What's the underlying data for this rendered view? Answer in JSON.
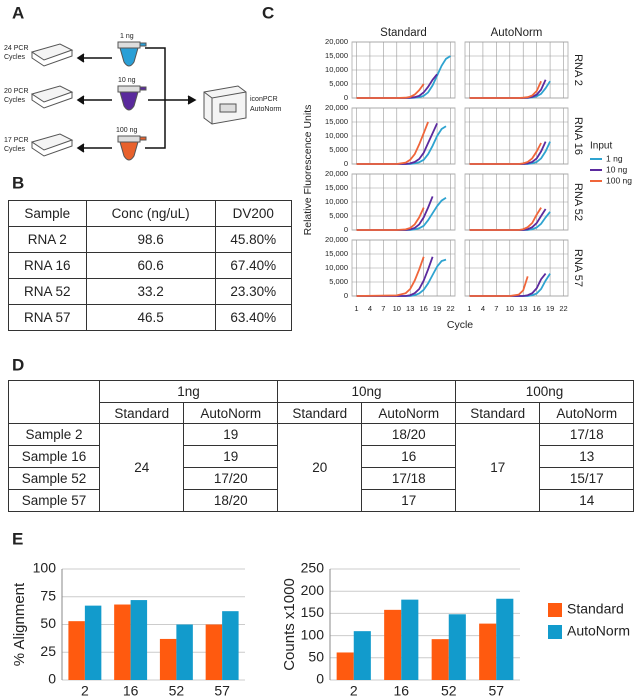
{
  "panel_labels": [
    "A",
    "B",
    "C",
    "D",
    "E"
  ],
  "diagram": {
    "cycle_labels": [
      [
        "24 PCR",
        "Cycles"
      ],
      [
        "20 PCR",
        "Cycles"
      ],
      [
        "17 PCR",
        "Cycles"
      ]
    ],
    "inputs": [
      "1 ng",
      "10 ng",
      "100 ng"
    ],
    "instrument": [
      "iconPCR",
      "AutoNorm"
    ]
  },
  "table_b": {
    "header": [
      "Sample",
      "Conc (ng/uL)",
      "DV200"
    ],
    "rows": [
      [
        "RNA 2",
        "98.6",
        "45.80%"
      ],
      [
        "RNA 16",
        "60.6",
        "67.40%"
      ],
      [
        "RNA 52",
        "33.2",
        "23.30%"
      ],
      [
        "RNA 57",
        "46.5",
        "63.40%"
      ]
    ]
  },
  "chart_data": [
    {
      "type": "line-grid",
      "columns": [
        "Standard",
        "AutoNorm"
      ],
      "rows": [
        "RNA 2",
        "RNA 16",
        "RNA 52",
        "RNA 57"
      ],
      "ylabel": "Relative Fluorescence Units",
      "xlabel": "Cycle",
      "legend_title": "Input",
      "series": [
        {
          "name": "1 ng",
          "color": "#2ea3d0"
        },
        {
          "name": "10 ng",
          "color": "#5b2a9e"
        },
        {
          "name": "100 ng",
          "color": "#f0653a"
        }
      ],
      "x": [
        1,
        10,
        12,
        13,
        14,
        15,
        16,
        17,
        18,
        19,
        20,
        21,
        22
      ],
      "xlim": [
        0,
        23
      ],
      "xticks": [
        1,
        4,
        7,
        10,
        13,
        16,
        19,
        22
      ],
      "ylim": [
        0,
        20000
      ],
      "yticks": [
        0,
        {
          "value": 5000,
          "label": "5,000"
        },
        {
          "value": 10000,
          "label": "10,000"
        },
        {
          "value": 15000,
          "label": "15,000"
        },
        {
          "value": 20000,
          "label": "20,000"
        }
      ],
      "grid": true,
      "panels": [
        [
          [
            [
              0,
              0,
              0,
              0,
              100,
              300,
              800,
              2000,
              4500,
              8000,
              11500,
              14000,
              15000
            ],
            [
              0,
              0,
              0,
              100,
              300,
              800,
              2000,
              4000,
              6500,
              8500,
              null,
              null,
              null
            ],
            [
              0,
              0,
              100,
              400,
              1200,
              2800,
              5000,
              null,
              null,
              null,
              null,
              null,
              null
            ]
          ],
          [
            [
              0,
              0,
              0,
              0,
              0,
              200,
              600,
              1500,
              3500,
              6000,
              null,
              null,
              null
            ],
            [
              0,
              0,
              0,
              0,
              100,
              400,
              1200,
              3000,
              6500,
              null,
              null,
              null,
              null
            ],
            [
              0,
              0,
              0,
              100,
              300,
              900,
              2500,
              6000,
              null,
              null,
              null,
              null,
              null
            ]
          ]
        ],
        [
          [
            [
              0,
              0,
              0,
              0,
              200,
              600,
              1500,
              3500,
              6500,
              10000,
              12500,
              13500,
              null
            ],
            [
              0,
              0,
              0,
              200,
              700,
              1800,
              4000,
              7500,
              11000,
              14500,
              null,
              null,
              null
            ],
            [
              0,
              0,
              500,
              1500,
              3500,
              7000,
              11000,
              15000,
              null,
              null,
              null,
              null,
              null
            ]
          ],
          [
            [
              0,
              0,
              0,
              0,
              0,
              200,
              700,
              2000,
              4500,
              8000,
              null,
              null,
              null
            ],
            [
              0,
              0,
              0,
              0,
              200,
              700,
              2000,
              4500,
              8000,
              null,
              null,
              null,
              null
            ],
            [
              0,
              0,
              0,
              200,
              700,
              2000,
              4500,
              7500,
              null,
              null,
              null,
              null,
              null
            ]
          ]
        ],
        [
          [
            [
              0,
              0,
              0,
              0,
              200,
              600,
              1500,
              3500,
              6000,
              8500,
              10500,
              11500,
              null
            ],
            [
              0,
              0,
              0,
              200,
              700,
              2000,
              4500,
              8000,
              12000,
              null,
              null,
              null,
              null
            ],
            [
              0,
              0,
              200,
              700,
              2000,
              4500,
              8000,
              null,
              null,
              null,
              null,
              null,
              null
            ]
          ],
          [
            [
              0,
              0,
              0,
              0,
              0,
              300,
              900,
              2200,
              4500,
              6500,
              null,
              null,
              null
            ],
            [
              0,
              0,
              0,
              0,
              300,
              1000,
              2500,
              5000,
              7500,
              null,
              null,
              null,
              null
            ],
            [
              0,
              0,
              0,
              300,
              1000,
              2500,
              5500,
              8000,
              null,
              null,
              null,
              null,
              null
            ]
          ]
        ],
        [
          [
            [
              0,
              0,
              0,
              0,
              300,
              900,
              2200,
              4500,
              7500,
              10500,
              12500,
              13000,
              null
            ],
            [
              0,
              0,
              0,
              300,
              1000,
              2500,
              5500,
              9500,
              14000,
              null,
              null,
              null,
              null
            ],
            [
              0,
              200,
              1000,
              2500,
              5500,
              9500,
              14000,
              null,
              null,
              null,
              null,
              null,
              null
            ]
          ],
          [
            [
              0,
              0,
              0,
              0,
              0,
              300,
              900,
              2500,
              5500,
              8000,
              null,
              null,
              null
            ],
            [
              0,
              0,
              0,
              0,
              300,
              1000,
              2800,
              6000,
              8000,
              null,
              null,
              null,
              null
            ],
            [
              0,
              0,
              500,
              2000,
              7000,
              null,
              null,
              null,
              null,
              null,
              null,
              null,
              null
            ]
          ]
        ]
      ]
    },
    {
      "type": "bar",
      "categories": [
        "2",
        "16",
        "52",
        "57"
      ],
      "ylabel": "% Alignment",
      "series": [
        {
          "color": "#ff5a0f",
          "values": [
            53,
            68,
            37,
            50
          ]
        },
        {
          "color": "#129bcc",
          "values": [
            67,
            72,
            50,
            62
          ]
        }
      ],
      "ylim": [
        0,
        100
      ],
      "yticks": [
        0,
        25,
        50,
        75,
        100
      ],
      "grid": true
    },
    {
      "type": "bar",
      "categories": [
        "2",
        "16",
        "52",
        "57"
      ],
      "ylabel": "Counts x1000",
      "series": [
        {
          "name": "Standard",
          "color": "#ff5a0f",
          "values": [
            62,
            158,
            92,
            127
          ]
        },
        {
          "name": "AutoNorm",
          "color": "#129bcc",
          "values": [
            110,
            181,
            148,
            183
          ]
        }
      ],
      "ylim": [
        0,
        250
      ],
      "yticks": [
        0,
        50,
        100,
        150,
        200,
        250
      ],
      "grid": true,
      "legend": "right"
    }
  ],
  "table_d": {
    "groups": [
      "1ng",
      "10ng",
      "100ng"
    ],
    "subheaders": [
      "Standard",
      "AutoNorm"
    ],
    "rows": [
      "Sample 2",
      "Sample 16",
      "Sample 52",
      "Sample 57"
    ],
    "standard": [
      "24",
      "20",
      "17"
    ],
    "autonorm": [
      [
        "19",
        "18/20",
        "17/18"
      ],
      [
        "19",
        "16",
        "13"
      ],
      [
        "17/20",
        "17/18",
        "15/17"
      ],
      [
        "18/20",
        "17",
        "14"
      ]
    ]
  }
}
